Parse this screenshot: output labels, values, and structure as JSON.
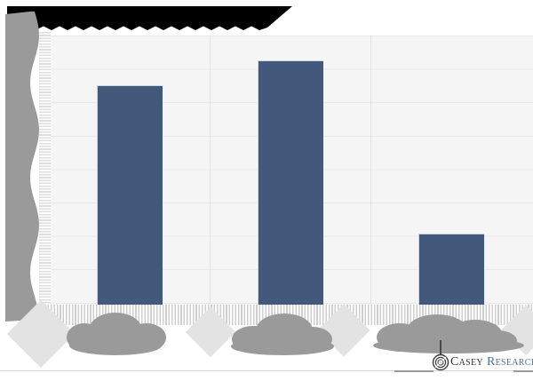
{
  "chart_data": {
    "type": "bar",
    "title": "",
    "redactions": {
      "title": "blacked out with solid black blob",
      "y_axis_tick_labels": "covered by gray blob and stripe pattern",
      "x_axis_category_labels": "covered by gray blobs and light diamonds"
    },
    "categories": [
      "",
      "",
      ""
    ],
    "series": [
      {
        "name": "",
        "values_pct_of_visible_axis": [
          81.5,
          90.8,
          26.4
        ]
      }
    ],
    "ylim_pct": [
      0,
      100
    ],
    "y_gridline_intervals": 8,
    "grid": true,
    "legend": false,
    "bar_color": "#42597c",
    "bar_highlight_color": "#c9d4e2",
    "plot_background": "#f5f5f5"
  },
  "colors": {
    "redaction_black": "#000000",
    "redaction_dark_gray": "#9a9a9a",
    "redaction_light_gray": "#e3e3e3",
    "gridline": "#eaeaea",
    "footer_rule": "#d6d6d6",
    "brand_dark": "#333333",
    "brand_blue": "#50719c"
  },
  "footer": {
    "brand": {
      "casey": "Casey",
      "research": "Research"
    }
  }
}
